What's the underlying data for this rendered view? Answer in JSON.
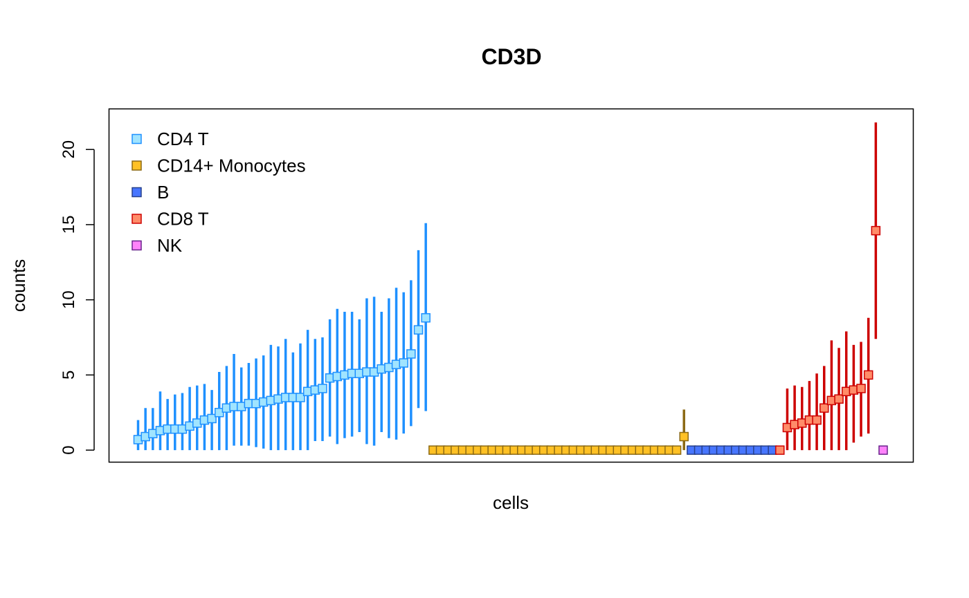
{
  "chart_data": {
    "type": "scatter",
    "title": "CD3D",
    "xlabel": "cells",
    "ylabel": "counts",
    "ylim": [
      -0.8,
      22.7
    ],
    "yticks": [
      0,
      5,
      10,
      15,
      20
    ],
    "ytick_labels": [
      "0",
      "5",
      "10",
      "15",
      "20"
    ],
    "legend_position": "top-left",
    "series": [
      {
        "name": "CD4 T",
        "color": "#1E90FF",
        "fill": "#A0E4FF",
        "values": [
          0.7,
          0.9,
          1.1,
          1.3,
          1.4,
          1.4,
          1.4,
          1.6,
          1.8,
          2.0,
          2.1,
          2.5,
          2.8,
          2.9,
          2.9,
          3.1,
          3.1,
          3.2,
          3.3,
          3.4,
          3.5,
          3.5,
          3.5,
          3.9,
          4.0,
          4.1,
          4.8,
          4.9,
          5.0,
          5.1,
          5.1,
          5.2,
          5.2,
          5.4,
          5.5,
          5.7,
          5.8,
          6.4,
          8.0,
          8.8
        ],
        "lower": [
          0,
          0,
          0,
          0,
          0,
          0,
          0,
          0,
          0,
          0,
          0,
          0,
          0,
          0.3,
          0.3,
          0.3,
          0.2,
          0.1,
          0,
          0,
          0,
          0,
          0,
          0,
          0.6,
          0.6,
          0.9,
          0.4,
          0.8,
          0.9,
          1.2,
          0.4,
          0.3,
          1.2,
          0.8,
          0.7,
          1.1,
          1.6,
          2.8,
          2.6
        ],
        "upper": [
          2.0,
          2.8,
          2.8,
          3.9,
          3.4,
          3.7,
          3.8,
          4.2,
          4.3,
          4.4,
          4.0,
          5.2,
          5.6,
          6.4,
          5.5,
          5.8,
          6.1,
          6.3,
          7.0,
          6.9,
          7.4,
          6.5,
          7.1,
          8.0,
          7.4,
          7.5,
          8.7,
          9.4,
          9.2,
          9.2,
          8.7,
          10.1,
          10.2,
          9.2,
          10.1,
          10.8,
          10.5,
          11.3,
          13.3,
          15.1
        ]
      },
      {
        "name": "CD14+ Monocytes",
        "color": "#8B6914",
        "fill": "#FFC125",
        "values": [
          0,
          0,
          0,
          0,
          0,
          0,
          0,
          0,
          0,
          0,
          0,
          0,
          0,
          0,
          0,
          0,
          0,
          0,
          0,
          0,
          0,
          0,
          0,
          0,
          0,
          0,
          0,
          0,
          0,
          0,
          0,
          0,
          0,
          0,
          0.9
        ],
        "lower": [
          0,
          0,
          0,
          0,
          0,
          0,
          0,
          0,
          0,
          0,
          0,
          0,
          0,
          0,
          0,
          0,
          0,
          0,
          0,
          0,
          0,
          0,
          0,
          0,
          0,
          0,
          0,
          0,
          0,
          0,
          0,
          0,
          0,
          0,
          0
        ],
        "upper": [
          0,
          0,
          0,
          0,
          0,
          0,
          0,
          0,
          0,
          0,
          0,
          0,
          0,
          0,
          0,
          0,
          0,
          0,
          0,
          0,
          0,
          0,
          0,
          0,
          0,
          0,
          0,
          0,
          0,
          0,
          0,
          0,
          0,
          0,
          2.7
        ]
      },
      {
        "name": "B",
        "color": "#27408B",
        "fill": "#4876FF",
        "values": [
          0,
          0,
          0,
          0,
          0,
          0,
          0,
          0,
          0,
          0,
          0,
          0
        ],
        "lower": [
          0,
          0,
          0,
          0,
          0,
          0,
          0,
          0,
          0,
          0,
          0,
          0
        ],
        "upper": [
          0,
          0,
          0,
          0,
          0,
          0,
          0,
          0,
          0,
          0,
          0,
          0
        ]
      },
      {
        "name": "CD8 T",
        "color": "#CD0000",
        "fill": "#FF8C69",
        "values": [
          0,
          1.5,
          1.7,
          1.8,
          2.0,
          2.0,
          2.8,
          3.3,
          3.4,
          3.9,
          4.0,
          4.1,
          5.0,
          14.6
        ],
        "lower": [
          0,
          0,
          0,
          0,
          0,
          0,
          0,
          0,
          0,
          0,
          0.5,
          0.9,
          1.1,
          7.4
        ],
        "upper": [
          0,
          4.1,
          4.3,
          4.2,
          4.6,
          5.1,
          5.6,
          7.3,
          6.8,
          7.9,
          7.0,
          7.2,
          8.8,
          21.8
        ]
      },
      {
        "name": "NK",
        "color": "#68228B",
        "fill": "#FF83FA",
        "values": [
          0
        ],
        "lower": [
          0
        ],
        "upper": [
          0
        ]
      }
    ]
  }
}
